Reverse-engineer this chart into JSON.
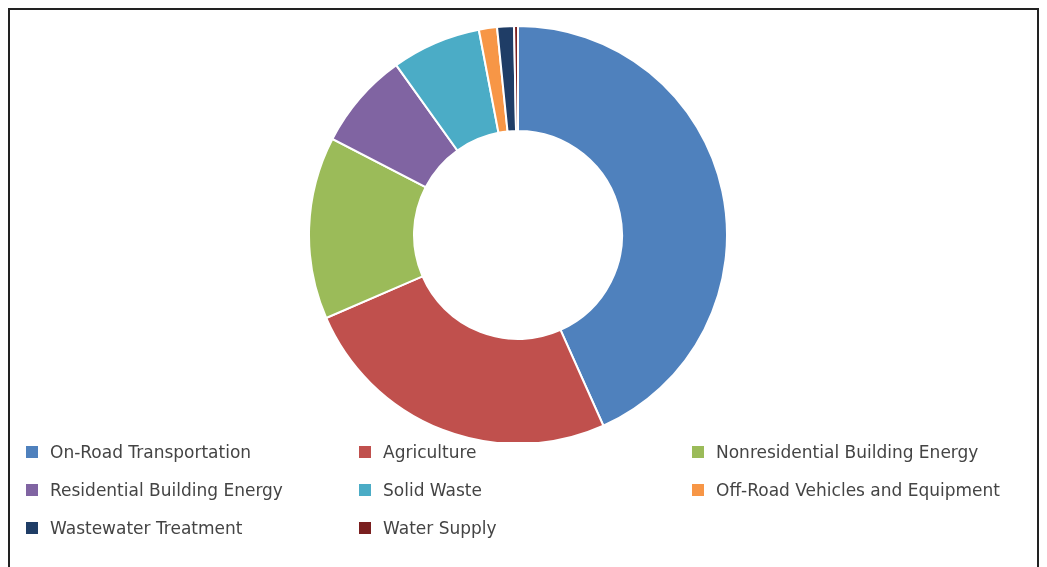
{
  "chart_data": {
    "type": "donut",
    "categories": [
      "On-Road Transportation",
      "Agriculture",
      "Nonresidential Building Energy",
      "Residential Building Energy",
      "Solid Waste",
      "Off-Road Vehicles and Equipment",
      "Wastewater Treatment",
      "Water Supply"
    ],
    "values": [
      43.3,
      25.2,
      14.1,
      7.5,
      6.9,
      1.4,
      1.3,
      0.3
    ],
    "colors": [
      "#4f81bd",
      "#c0504d",
      "#9bbb59",
      "#8064a2",
      "#4bacc6",
      "#f79646",
      "#1f3d66",
      "#7a1f1f"
    ],
    "legend": "bottom"
  }
}
